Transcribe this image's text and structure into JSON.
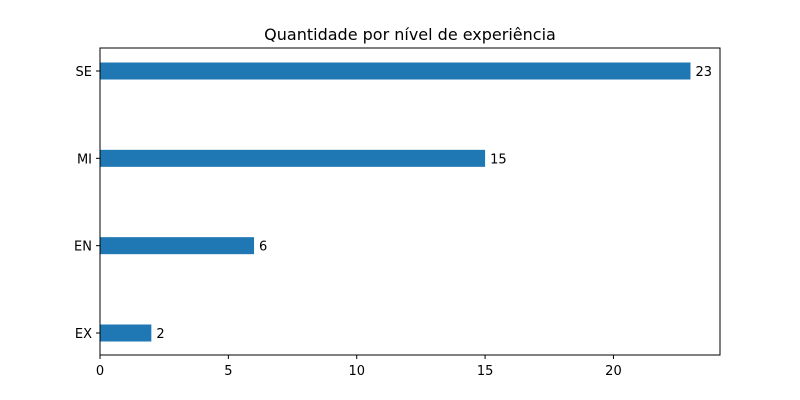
{
  "chart_data": {
    "type": "bar",
    "orientation": "horizontal",
    "title": "Quantidade por nível de experiência",
    "xlabel": "",
    "ylabel": "",
    "categories": [
      "SE",
      "MI",
      "EN",
      "EX"
    ],
    "values": [
      23,
      15,
      6,
      2
    ],
    "data_labels": [
      "23",
      "15",
      "6",
      "2"
    ],
    "x_ticks": [
      0,
      5,
      10,
      15,
      20
    ],
    "x_tick_labels": [
      "0",
      "5",
      "10",
      "15",
      "20"
    ],
    "xlim": [
      0,
      24.15
    ],
    "grid": false,
    "legend": "none",
    "bar_color": "#1f77b4"
  }
}
